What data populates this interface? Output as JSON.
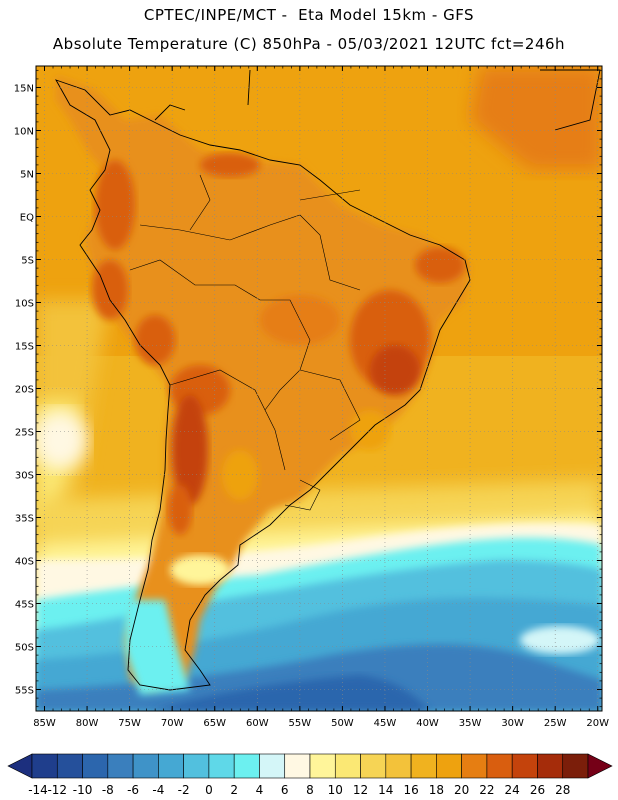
{
  "header": {
    "line1": "CPTEC/INPE/MCT -  Eta Model 15km - GFS",
    "line2": "Absolute Temperature (C) 850hPa - 05/03/2021 12UTC fct=246h"
  },
  "map": {
    "lat_labels": [
      "15N",
      "10N",
      "5N",
      "EQ",
      "5S",
      "10S",
      "15S",
      "20S",
      "25S",
      "30S",
      "35S",
      "40S",
      "45S",
      "50S",
      "55S"
    ],
    "lon_labels": [
      "85W",
      "80W",
      "75W",
      "70W",
      "65W",
      "60W",
      "55W",
      "50W",
      "45W",
      "40W",
      "35W",
      "30W",
      "25W",
      "20W"
    ],
    "lat_range": [
      17.5,
      -57.5
    ],
    "lon_range": [
      -86,
      -19.5
    ],
    "grid": "dotted"
  },
  "colorbar": {
    "labels": [
      "-14",
      "-12",
      "-10",
      "-8",
      "-6",
      "-4",
      "-2",
      "0",
      "2",
      "4",
      "6",
      "8",
      "10",
      "12",
      "14",
      "16",
      "18",
      "20",
      "22",
      "24",
      "26",
      "28"
    ],
    "colors": [
      "#1f3e8c",
      "#25509b",
      "#2c66ad",
      "#3a7fbd",
      "#3f93c8",
      "#45a8d3",
      "#52c0de",
      "#5fd8e8",
      "#6cf0f0",
      "#d4f6f8",
      "#fff8e3",
      "#fff59a",
      "#fbe874",
      "#f6d455",
      "#f3c23a",
      "#f0b21f",
      "#eea20f",
      "#e67e12",
      "#d95e0f",
      "#c4430c",
      "#a52c0a",
      "#7b1e0a"
    ],
    "under_color": "#1c2f7e",
    "over_color": "#750017"
  }
}
